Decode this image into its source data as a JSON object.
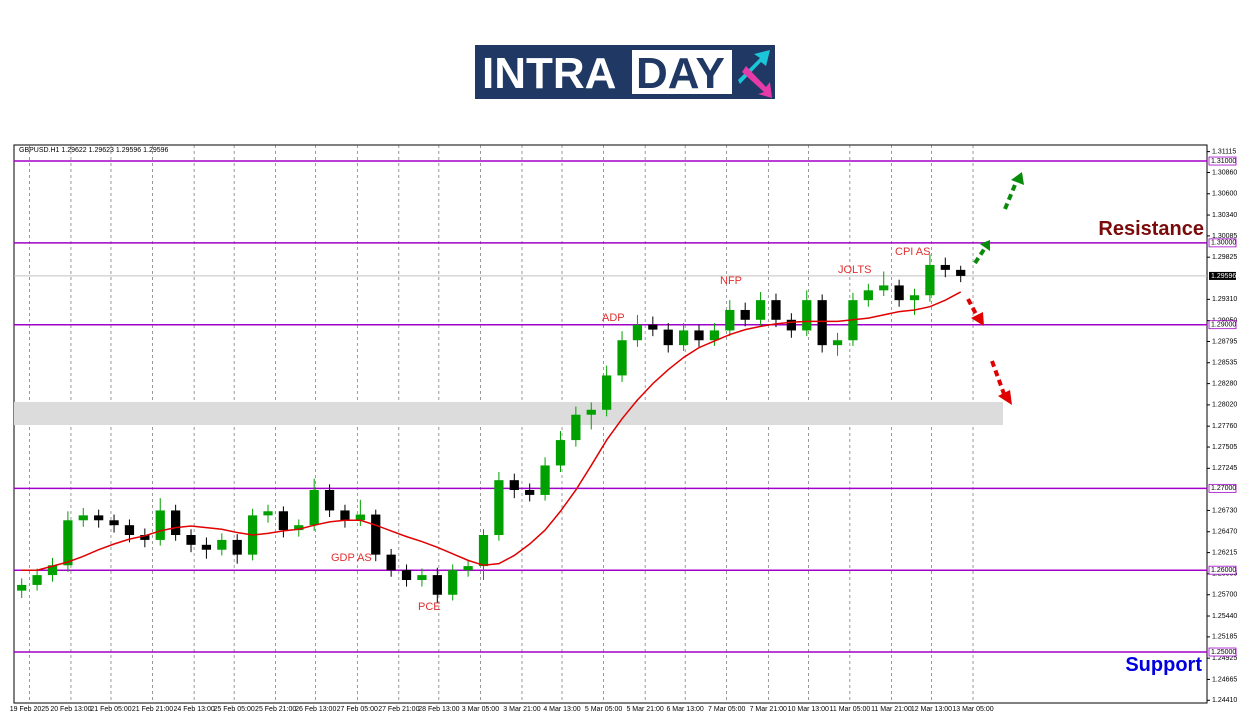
{
  "logo": {
    "part_1": "INTRA",
    "part_2": "DAY"
  },
  "chart_data": {
    "type": "candlestick",
    "subtitle": "GBPUSD.H1  1.29622 1.29623 1.29596 1.29596",
    "xlim": [
      -0.5,
      77
    ],
    "xticks": [
      {
        "value": 0.5,
        "label": "19 Feb 2025"
      },
      {
        "value": 3.2,
        "label": "20 Feb 13:00"
      },
      {
        "value": 5.8,
        "label": "21 Feb 05:00"
      },
      {
        "value": 8.5,
        "label": "21 Feb 21:00"
      },
      {
        "value": 11.2,
        "label": "24 Feb 13:00"
      },
      {
        "value": 13.8,
        "label": "25 Feb 05:00"
      },
      {
        "value": 16.5,
        "label": "25 Feb 21:00"
      },
      {
        "value": 19.1,
        "label": "26 Feb 13:00"
      },
      {
        "value": 21.8,
        "label": "27 Feb 05:00"
      },
      {
        "value": 24.5,
        "label": "27 Feb 21:00"
      },
      {
        "value": 27.1,
        "label": "28 Feb 13:00"
      },
      {
        "value": 29.8,
        "label": "3 Mar 05:00"
      },
      {
        "value": 32.5,
        "label": "3 Mar 21:00"
      },
      {
        "value": 35.1,
        "label": "4 Mar 13:00"
      },
      {
        "value": 37.8,
        "label": "5 Mar 05:00"
      },
      {
        "value": 40.5,
        "label": "5 Mar 21:00"
      },
      {
        "value": 43.1,
        "label": "6 Mar 13:00"
      },
      {
        "value": 45.8,
        "label": "7 Mar 05:00"
      },
      {
        "value": 48.5,
        "label": "7 Mar 21:00"
      },
      {
        "value": 51.1,
        "label": "10 Mar 13:00"
      },
      {
        "value": 53.8,
        "label": "11 Mar 05:00"
      },
      {
        "value": 56.5,
        "label": "11 Mar 21:00"
      },
      {
        "value": 59.1,
        "label": "12 Mar 13:00"
      },
      {
        "value": 61.8,
        "label": "13 Mar 05:00"
      }
    ],
    "ylim": [
      1.24377,
      1.31196
    ],
    "yticks": [
      {
        "value": 1.31115,
        "label": "1.31115"
      },
      {
        "value": 1.3086,
        "label": "1.30860"
      },
      {
        "value": 1.306,
        "label": "1.30600"
      },
      {
        "value": 1.3034,
        "label": "1.30340"
      },
      {
        "value": 1.30085,
        "label": "1.30085"
      },
      {
        "value": 1.29825,
        "label": "1.29825"
      },
      {
        "value": 1.2931,
        "label": "1.29310"
      },
      {
        "value": 1.2905,
        "label": "1.29050"
      },
      {
        "value": 1.28795,
        "label": "1.28795"
      },
      {
        "value": 1.28535,
        "label": "1.28535"
      },
      {
        "value": 1.2828,
        "label": "1.28280"
      },
      {
        "value": 1.2802,
        "label": "1.28020"
      },
      {
        "value": 1.2776,
        "label": "1.27760"
      },
      {
        "value": 1.27505,
        "label": "1.27505"
      },
      {
        "value": 1.27245,
        "label": "1.27245"
      },
      {
        "value": 1.2673,
        "label": "1.26730"
      },
      {
        "value": 1.2647,
        "label": "1.26470"
      },
      {
        "value": 1.26215,
        "label": "1.26215"
      },
      {
        "value": 1.25955,
        "label": "1.25955"
      },
      {
        "value": 1.257,
        "label": "1.25700"
      },
      {
        "value": 1.2544,
        "label": "1.25440"
      },
      {
        "value": 1.25185,
        "label": "1.25185"
      },
      {
        "value": 1.24925,
        "label": "1.24925"
      },
      {
        "value": 1.24665,
        "label": "1.24665"
      },
      {
        "value": 1.2441,
        "label": "1.24410"
      }
    ],
    "levels": [
      {
        "value": 1.31,
        "label": "1.31000"
      },
      {
        "value": 1.3,
        "label": "1.30000"
      },
      {
        "value": 1.29,
        "label": "1.29000"
      },
      {
        "value": 1.27,
        "label": "1.27000"
      },
      {
        "value": 1.26,
        "label": "1.26000"
      },
      {
        "value": 1.25,
        "label": "1.25000"
      }
    ],
    "level_color": "#a000c8",
    "last_price": {
      "value": 1.29596,
      "label": "1.29596"
    },
    "zone": [
      1.27774,
      1.28055
    ],
    "bull_color": "#00a000",
    "bear_color": "#000000",
    "open": [
      1.2575,
      1.2582,
      1.2594,
      1.2606,
      1.2661,
      1.2667,
      1.2661,
      1.2655,
      1.2643,
      1.2637,
      1.2673,
      1.2643,
      1.2631,
      1.2625,
      1.2637,
      1.2619,
      1.2667,
      1.2672,
      1.2649,
      1.2655,
      1.2698,
      1.2673,
      1.2661,
      1.2668,
      1.2619,
      1.26,
      1.2588,
      1.2594,
      1.257,
      1.26,
      1.2605,
      1.2643,
      1.271,
      1.2698,
      1.2692,
      1.2728,
      1.2759,
      1.279,
      1.2796,
      1.2838,
      1.2881,
      1.29,
      1.2894,
      1.2875,
      1.2893,
      1.2881,
      1.2893,
      1.2918,
      1.2906,
      1.293,
      1.2906,
      1.2893,
      1.293,
      1.2875,
      1.2881,
      1.293,
      1.2942,
      1.2948,
      1.293,
      1.2936,
      1.2973,
      1.2967
    ],
    "high": [
      1.259,
      1.2602,
      1.2615,
      1.2672,
      1.2676,
      1.2674,
      1.2668,
      1.2662,
      1.2651,
      1.2688,
      1.268,
      1.265,
      1.264,
      1.2645,
      1.2644,
      1.2675,
      1.268,
      1.2678,
      1.2662,
      1.2712,
      1.2705,
      1.268,
      1.2686,
      1.2674,
      1.2626,
      1.2607,
      1.2602,
      1.2603,
      1.2607,
      1.2612,
      1.265,
      1.272,
      1.2718,
      1.2706,
      1.2738,
      1.277,
      1.28,
      1.2805,
      1.285,
      1.2892,
      1.2912,
      1.291,
      1.2902,
      1.2902,
      1.29,
      1.2902,
      1.293,
      1.2927,
      1.294,
      1.2938,
      1.2914,
      1.2942,
      1.2937,
      1.289,
      1.2939,
      1.295,
      1.2965,
      1.2955,
      1.2944,
      1.2986,
      1.2982,
      1.2972
    ],
    "low": [
      1.2566,
      1.2575,
      1.2586,
      1.2598,
      1.2653,
      1.2652,
      1.2646,
      1.2634,
      1.2628,
      1.263,
      1.2636,
      1.2622,
      1.2614,
      1.2618,
      1.2608,
      1.2612,
      1.2658,
      1.264,
      1.2641,
      1.2648,
      1.2665,
      1.2652,
      1.2654,
      1.2611,
      1.2592,
      1.258,
      1.258,
      1.256,
      1.2563,
      1.2592,
      1.2588,
      1.2636,
      1.2688,
      1.2684,
      1.2685,
      1.272,
      1.2751,
      1.2772,
      1.2788,
      1.283,
      1.2873,
      1.2886,
      1.2866,
      1.2868,
      1.2873,
      1.2874,
      1.2886,
      1.2898,
      1.2899,
      1.2897,
      1.2884,
      1.2886,
      1.2866,
      1.2862,
      1.2874,
      1.2922,
      1.2935,
      1.2922,
      1.2912,
      1.2928,
      1.2958,
      1.2952
    ],
    "close": [
      1.2582,
      1.2594,
      1.2606,
      1.2661,
      1.2667,
      1.2661,
      1.2655,
      1.2643,
      1.2637,
      1.2673,
      1.2643,
      1.2631,
      1.2625,
      1.2637,
      1.2619,
      1.2667,
      1.2672,
      1.2649,
      1.2655,
      1.2698,
      1.2673,
      1.2661,
      1.2668,
      1.2619,
      1.26,
      1.2588,
      1.2594,
      1.257,
      1.26,
      1.2605,
      1.2643,
      1.271,
      1.2698,
      1.2692,
      1.2728,
      1.2759,
      1.279,
      1.2796,
      1.2838,
      1.2881,
      1.29,
      1.2894,
      1.2875,
      1.2893,
      1.2881,
      1.2893,
      1.2918,
      1.2906,
      1.293,
      1.2906,
      1.2893,
      1.293,
      1.2875,
      1.2881,
      1.293,
      1.2942,
      1.2948,
      1.293,
      1.2936,
      1.2973,
      1.2967,
      1.29596
    ],
    "ma": {
      "color": "#e00000",
      "values": [
        1.26,
        1.26,
        1.2605,
        1.261,
        1.2617,
        1.2625,
        1.2632,
        1.2638,
        1.2642,
        1.2648,
        1.2652,
        1.2654,
        1.2652,
        1.265,
        1.2646,
        1.2643,
        1.2645,
        1.2648,
        1.265,
        1.2655,
        1.2659,
        1.2661,
        1.2661,
        1.2655,
        1.2648,
        1.2641,
        1.2635,
        1.2628,
        1.262,
        1.2612,
        1.2606,
        1.2608,
        1.2618,
        1.2632,
        1.2649,
        1.2672,
        1.2698,
        1.2728,
        1.2759,
        1.2785,
        1.2808,
        1.2828,
        1.2845,
        1.286,
        1.2872,
        1.288,
        1.2888,
        1.2894,
        1.2898,
        1.2901,
        1.2903,
        1.2904,
        1.2904,
        1.2904,
        1.2906,
        1.2908,
        1.2912,
        1.2916,
        1.2918,
        1.2922,
        1.293,
        1.294
      ]
    },
    "annotations": [
      "GDP AS",
      "PCE",
      "ADP",
      "NFP",
      "JOLTS",
      "CPI AS"
    ],
    "resistance": "Resistance",
    "support": "Support"
  }
}
